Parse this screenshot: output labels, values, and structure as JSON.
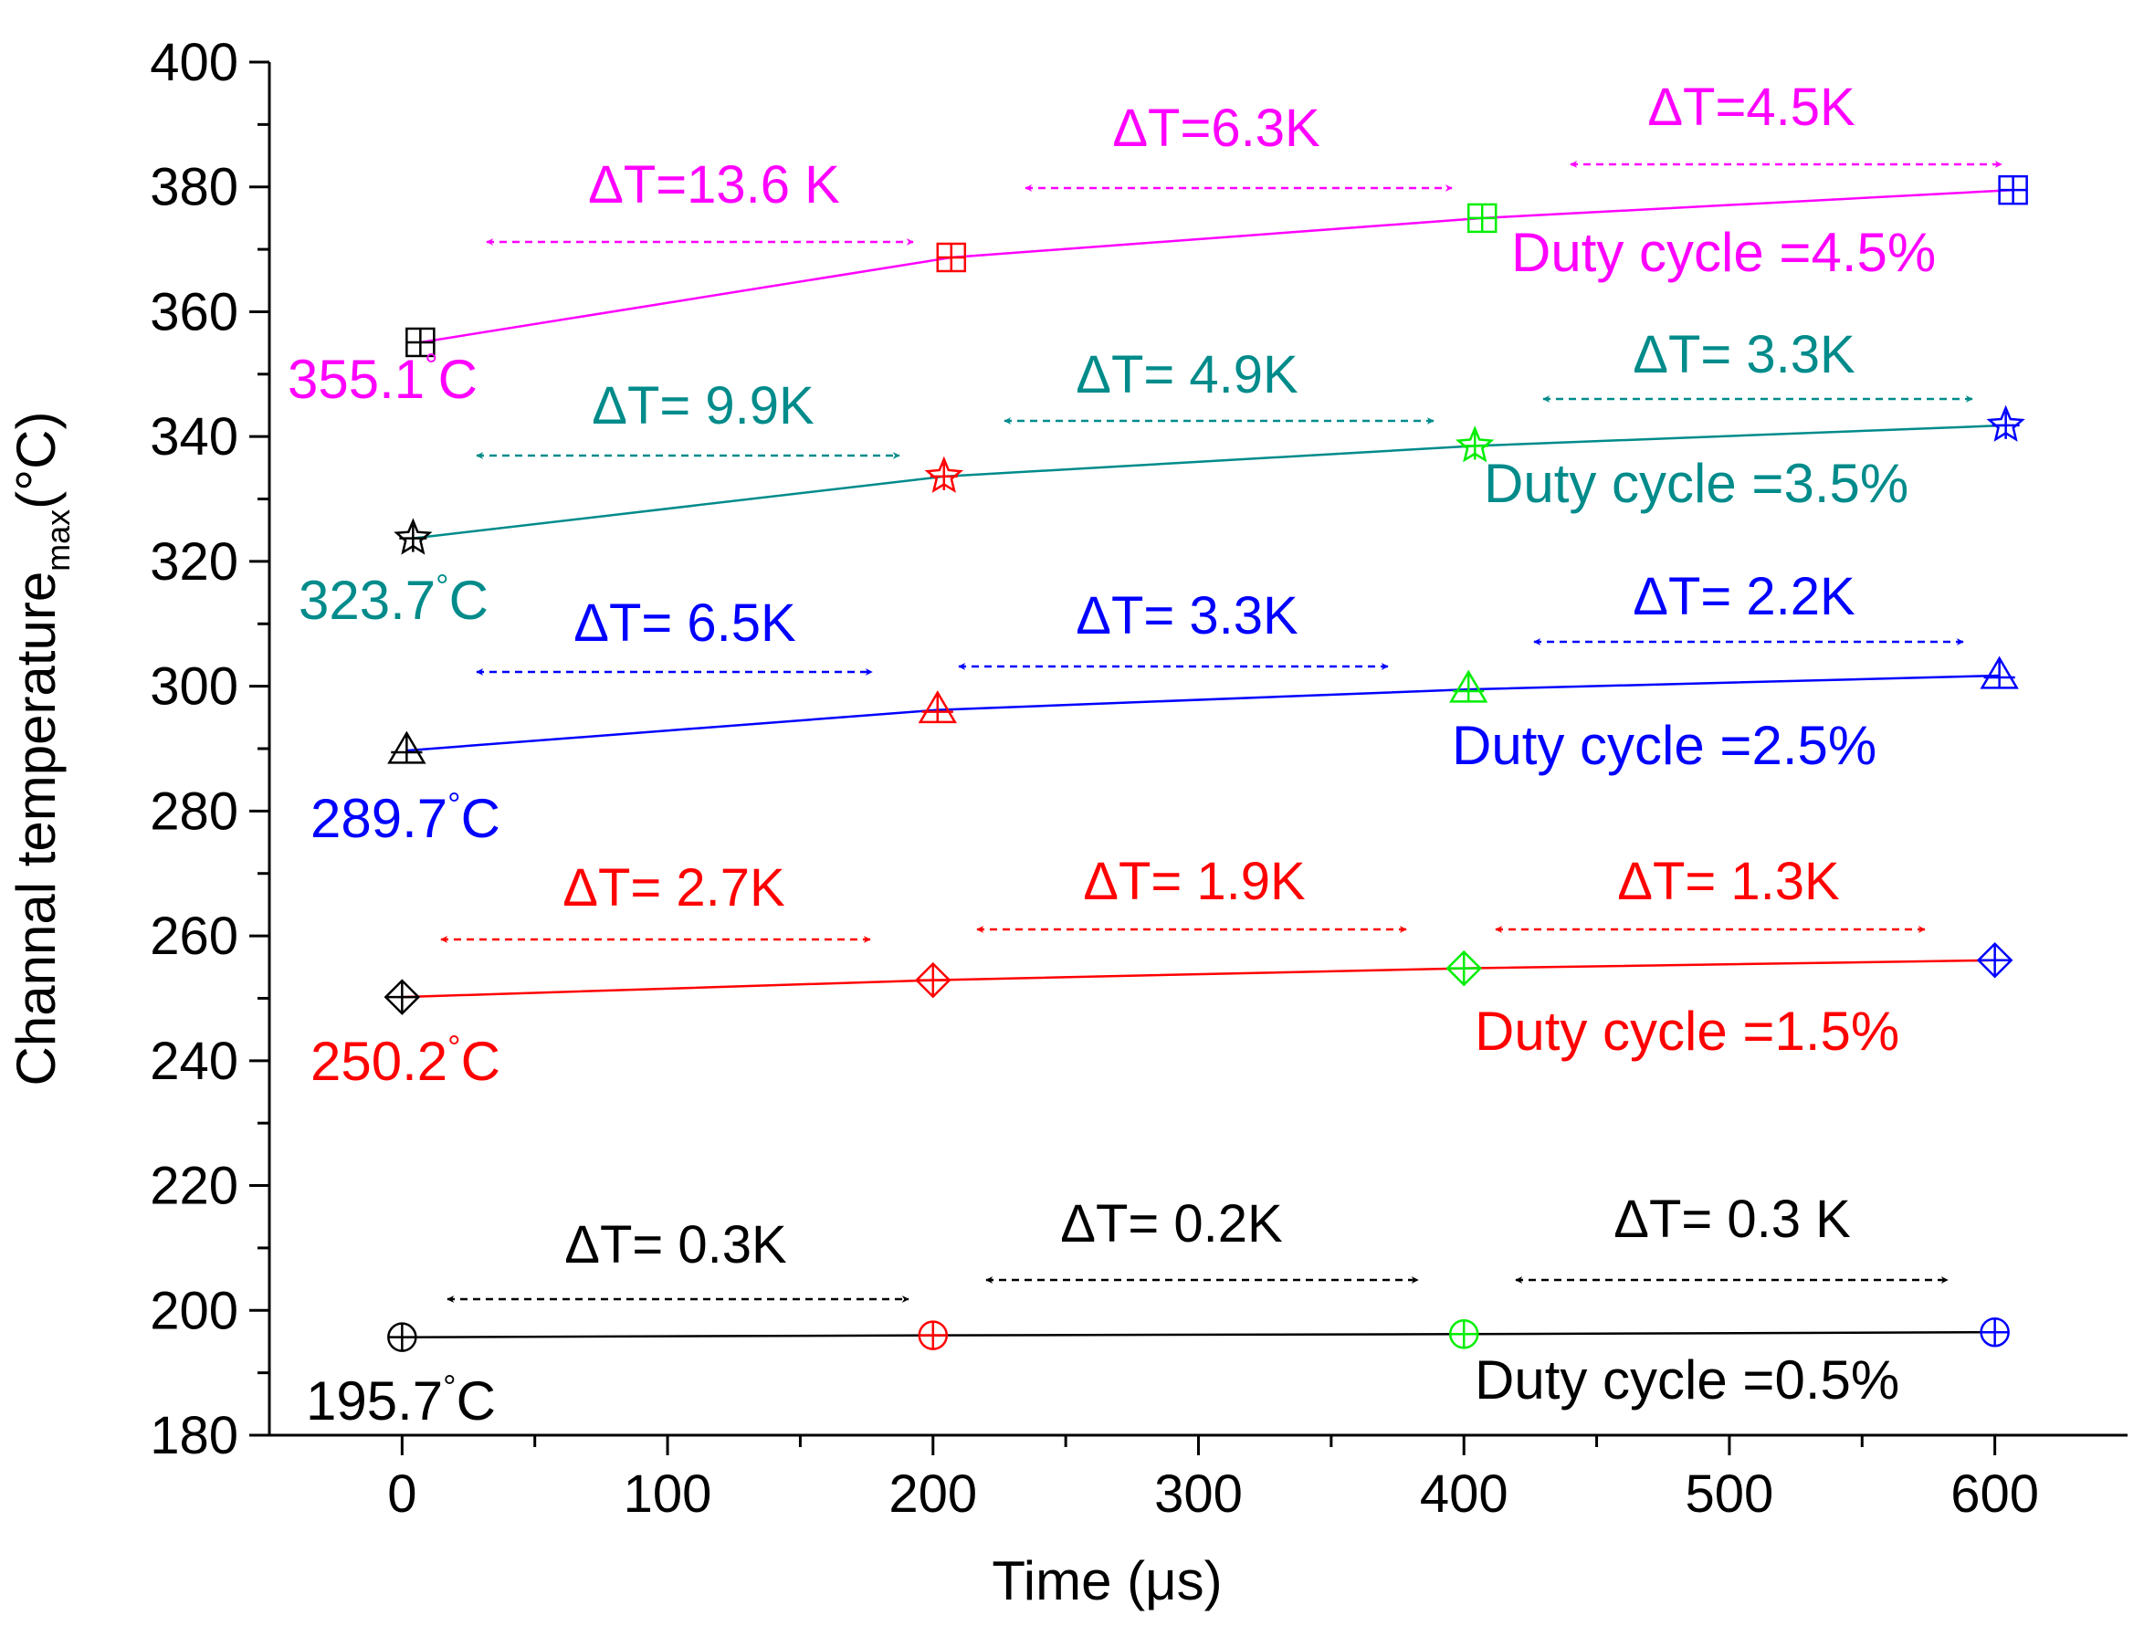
{
  "chart_data": {
    "type": "line",
    "xlabel": "Time (μs)",
    "ylabel_main": "Channal temperature",
    "ylabel_sub": "max",
    "ylabel_unit": "(°C)",
    "xlim": [
      -50,
      650
    ],
    "ylim": [
      180,
      400
    ],
    "xticks": [
      0,
      100,
      200,
      300,
      400,
      500,
      600
    ],
    "yticks": [
      180,
      200,
      220,
      240,
      260,
      280,
      300,
      320,
      340,
      360,
      380,
      400
    ],
    "point_colors": [
      "#000000",
      "#ff0000",
      "#00ee00",
      "#0000ff"
    ],
    "series": [
      {
        "name": "Duty cycle =0.5%",
        "color": "#000000",
        "arrow_color": "#000000",
        "marker": "circle",
        "x": [
          0,
          200,
          400,
          600
        ],
        "y": [
          195.7,
          196.0,
          196.2,
          196.5
        ],
        "start_label": "195.7",
        "start_label_unit": "°C",
        "label": "Duty cycle =0.5%",
        "deltas": [
          "ΔT= 0.3K",
          "ΔT= 0.2K",
          "ΔT= 0.3 K"
        ]
      },
      {
        "name": "Duty cycle =1.5%",
        "color": "#ff0000",
        "arrow_color": "#ff0000",
        "marker": "diamond",
        "x": [
          0,
          200,
          400,
          600
        ],
        "y": [
          250.2,
          252.9,
          254.8,
          256.1
        ],
        "start_label": "250.2",
        "start_label_unit": "°C",
        "label": "Duty cycle =1.5%",
        "deltas": [
          "ΔT= 2.7K",
          "ΔT= 1.9K",
          "ΔT= 1.3K"
        ]
      },
      {
        "name": "Duty cycle =2.5%",
        "color": "#0000ff",
        "arrow_color": "#0000ff",
        "marker": "triangle",
        "x": [
          0,
          200,
          400,
          600
        ],
        "y": [
          289.7,
          296.2,
          299.5,
          301.7
        ],
        "start_label": "289.7",
        "start_label_unit": "°C",
        "label": "Duty cycle =2.5%",
        "deltas": [
          "ΔT= 6.5K",
          "ΔT= 3.3K",
          "ΔT= 2.2K"
        ]
      },
      {
        "name": "Duty cycle =3.5%",
        "color": "#008b8b",
        "arrow_color": "#008b8b",
        "marker": "star",
        "x": [
          0,
          200,
          400,
          600
        ],
        "y": [
          323.7,
          333.6,
          338.5,
          341.8
        ],
        "start_label": "323.7",
        "start_label_unit": "°C",
        "label": "Duty cycle =3.5%",
        "deltas": [
          "ΔT= 9.9K",
          "ΔT= 4.9K",
          "ΔT= 3.3K"
        ]
      },
      {
        "name": "Duty cycle =4.5%",
        "color": "#ff00ff",
        "arrow_color": "#ff00ff",
        "marker": "square",
        "x": [
          0,
          200,
          400,
          600
        ],
        "y": [
          355.1,
          368.7,
          375.0,
          379.5
        ],
        "start_label": "355.1",
        "start_label_unit": "°C",
        "label": "Duty cycle =4.5%",
        "deltas": [
          "ΔT=13.6 K",
          "ΔT=6.3K",
          "ΔT=4.5K"
        ]
      }
    ]
  }
}
